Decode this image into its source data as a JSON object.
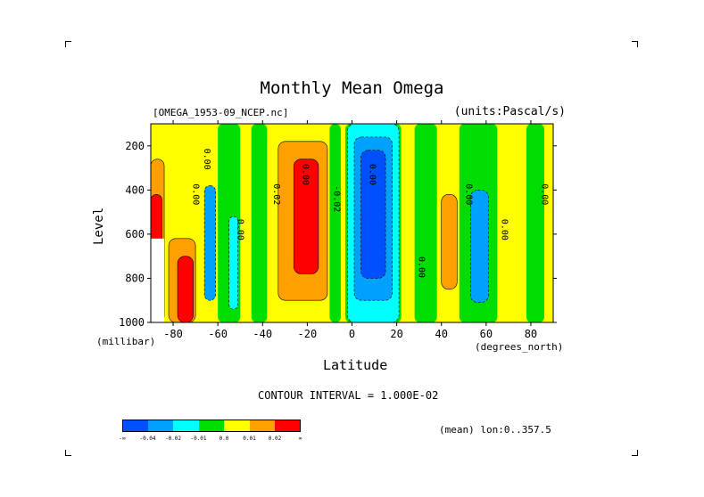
{
  "chart_data": {
    "type": "heatmap",
    "title": "Monthly Mean Omega",
    "dataset_label": "[OMEGA_1953-09_NCEP.nc]",
    "units_label": "(units:Pascal/s)",
    "xlabel": "Latitude",
    "x_unit_label": "(degrees_north)",
    "ylabel": "Level",
    "y_unit_label": "(millibar)",
    "xlim": [
      -90,
      90
    ],
    "ylim": [
      1000,
      100
    ],
    "x_ticks": [
      "-80",
      "-60",
      "-40",
      "-20",
      "0",
      "20",
      "40",
      "60",
      "80"
    ],
    "y_ticks": [
      "200",
      "400",
      "600",
      "800",
      "1000"
    ],
    "contour_interval_text": "CONTOUR INTERVAL = 1.000E-02",
    "mean_text": "(mean) lon:0..357.5",
    "contour_labels": [
      "0.00",
      "0.00",
      "0.02",
      "0.00",
      "-0.02",
      "0.00",
      "0.00",
      "0.00",
      "0.00",
      "0.00",
      "0.00"
    ],
    "colorbar": {
      "colors": [
        "#0050ff",
        "#00a0ff",
        "#00ffff",
        "#00dd00",
        "#ffff00",
        "#ffa000",
        "#ff0000"
      ],
      "labels": [
        "-∞",
        "-0.04",
        "-0.02",
        "-0.01",
        "0.0",
        "0.01",
        "0.02",
        "∞"
      ]
    },
    "bands": [
      {
        "lat_min": -90,
        "lat_max": -84,
        "p_top": 260,
        "p_bottom": 1000,
        "value": 0.01
      },
      {
        "lat_min": -90,
        "lat_max": -85,
        "p_top": 420,
        "p_bottom": 1000,
        "value": 0.03
      },
      {
        "lat_min": -82,
        "lat_max": -70,
        "p_top": 620,
        "p_bottom": 1000,
        "value": 0.01
      },
      {
        "lat_min": -78,
        "lat_max": -71,
        "p_top": 700,
        "p_bottom": 1000,
        "value": 0.03
      },
      {
        "lat_min": -66,
        "lat_max": -61,
        "p_top": 380,
        "p_bottom": 900,
        "value": -0.02
      },
      {
        "lat_min": -55,
        "lat_max": -51,
        "p_top": 520,
        "p_bottom": 940,
        "value": -0.01
      },
      {
        "lat_min": -33,
        "lat_max": -11,
        "p_top": 180,
        "p_bottom": 900,
        "value": 0.01
      },
      {
        "lat_min": -26,
        "lat_max": -15,
        "p_top": 260,
        "p_bottom": 780,
        "value": 0.03
      },
      {
        "lat_min": -2,
        "lat_max": 21,
        "p_top": 100,
        "p_bottom": 1000,
        "value": -0.01
      },
      {
        "lat_min": 1,
        "lat_max": 18,
        "p_top": 160,
        "p_bottom": 900,
        "value": -0.02
      },
      {
        "lat_min": 4,
        "lat_max": 15,
        "p_top": 220,
        "p_bottom": 800,
        "value": -0.04
      },
      {
        "lat_min": 40,
        "lat_max": 47,
        "p_top": 420,
        "p_bottom": 850,
        "value": 0.01
      },
      {
        "lat_min": 53,
        "lat_max": 61,
        "p_top": 400,
        "p_bottom": 910,
        "value": -0.02
      }
    ]
  }
}
